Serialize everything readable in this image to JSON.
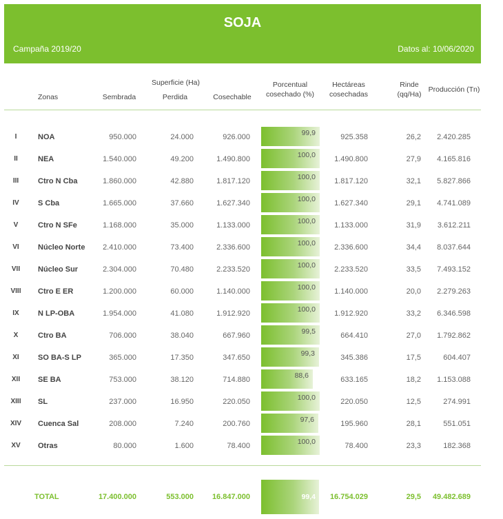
{
  "banner": {
    "title": "SOJA",
    "campaign": "Campaña 2019/20",
    "date": "Datos al: 10/06/2020"
  },
  "headers": {
    "zonas": "Zonas",
    "superficie": "Superficie (Ha)",
    "sembrada": "Sembrada",
    "perdida": "Perdida",
    "cosechable": "Cosechable",
    "porcentual_1": "Porcentual",
    "porcentual_2": "cosechado (%)",
    "hectareas_1": "Hectáreas",
    "hectareas_2": "cosechadas",
    "rinde_1": "Rinde",
    "rinde_2": "(qq/Ha)",
    "produccion": "Producción (Tn)"
  },
  "colors": {
    "accent": "#7cbf2e"
  },
  "rows": [
    {
      "roman": "I",
      "zona": "NOA",
      "sembrada": "950.000",
      "perdida": "24.000",
      "cosechable": "926.000",
      "pct": "99,9",
      "pct_value": 99.9,
      "hectareas": "925.358",
      "rinde": "26,2",
      "produccion": "2.420.285"
    },
    {
      "roman": "II",
      "zona": "NEA",
      "sembrada": "1.540.000",
      "perdida": "49.200",
      "cosechable": "1.490.800",
      "pct": "100,0",
      "pct_value": 100.0,
      "hectareas": "1.490.800",
      "rinde": "27,9",
      "produccion": "4.165.816"
    },
    {
      "roman": "III",
      "zona": "Ctro N Cba",
      "sembrada": "1.860.000",
      "perdida": "42.880",
      "cosechable": "1.817.120",
      "pct": "100,0",
      "pct_value": 100.0,
      "hectareas": "1.817.120",
      "rinde": "32,1",
      "produccion": "5.827.866"
    },
    {
      "roman": "IV",
      "zona": "S Cba",
      "sembrada": "1.665.000",
      "perdida": "37.660",
      "cosechable": "1.627.340",
      "pct": "100,0",
      "pct_value": 100.0,
      "hectareas": "1.627.340",
      "rinde": "29,1",
      "produccion": "4.741.089"
    },
    {
      "roman": "V",
      "zona": "Ctro N SFe",
      "sembrada": "1.168.000",
      "perdida": "35.000",
      "cosechable": "1.133.000",
      "pct": "100,0",
      "pct_value": 100.0,
      "hectareas": "1.133.000",
      "rinde": "31,9",
      "produccion": "3.612.211"
    },
    {
      "roman": "VI",
      "zona": "Núcleo Norte",
      "sembrada": "2.410.000",
      "perdida": "73.400",
      "cosechable": "2.336.600",
      "pct": "100,0",
      "pct_value": 100.0,
      "hectareas": "2.336.600",
      "rinde": "34,4",
      "produccion": "8.037.644"
    },
    {
      "roman": "VII",
      "zona": "Núcleo Sur",
      "sembrada": "2.304.000",
      "perdida": "70.480",
      "cosechable": "2.233.520",
      "pct": "100,0",
      "pct_value": 100.0,
      "hectareas": "2.233.520",
      "rinde": "33,5",
      "produccion": "7.493.152"
    },
    {
      "roman": "VIII",
      "zona": "Ctro E ER",
      "sembrada": "1.200.000",
      "perdida": "60.000",
      "cosechable": "1.140.000",
      "pct": "100,0",
      "pct_value": 100.0,
      "hectareas": "1.140.000",
      "rinde": "20,0",
      "produccion": "2.279.263"
    },
    {
      "roman": "IX",
      "zona": "N LP-OBA",
      "sembrada": "1.954.000",
      "perdida": "41.080",
      "cosechable": "1.912.920",
      "pct": "100,0",
      "pct_value": 100.0,
      "hectareas": "1.912.920",
      "rinde": "33,2",
      "produccion": "6.346.598"
    },
    {
      "roman": "X",
      "zona": "Ctro BA",
      "sembrada": "706.000",
      "perdida": "38.040",
      "cosechable": "667.960",
      "pct": "99,5",
      "pct_value": 99.5,
      "hectareas": "664.410",
      "rinde": "27,0",
      "produccion": "1.792.862"
    },
    {
      "roman": "XI",
      "zona": "SO BA-S LP",
      "sembrada": "365.000",
      "perdida": "17.350",
      "cosechable": "347.650",
      "pct": "99,3",
      "pct_value": 99.3,
      "hectareas": "345.386",
      "rinde": "17,5",
      "produccion": "604.407"
    },
    {
      "roman": "XII",
      "zona": "SE BA",
      "sembrada": "753.000",
      "perdida": "38.120",
      "cosechable": "714.880",
      "pct": "88,6",
      "pct_value": 88.6,
      "hectareas": "633.165",
      "rinde": "18,2",
      "produccion": "1.153.088"
    },
    {
      "roman": "XIII",
      "zona": "SL",
      "sembrada": "237.000",
      "perdida": "16.950",
      "cosechable": "220.050",
      "pct": "100,0",
      "pct_value": 100.0,
      "hectareas": "220.050",
      "rinde": "12,5",
      "produccion": "274.991"
    },
    {
      "roman": "XIV",
      "zona": "Cuenca Sal",
      "sembrada": "208.000",
      "perdida": "7.240",
      "cosechable": "200.760",
      "pct": "97,6",
      "pct_value": 97.6,
      "hectareas": "195.960",
      "rinde": "28,1",
      "produccion": "551.051"
    },
    {
      "roman": "XV",
      "zona": "Otras",
      "sembrada": "80.000",
      "perdida": "1.600",
      "cosechable": "78.400",
      "pct": "100,0",
      "pct_value": 100.0,
      "hectareas": "78.400",
      "rinde": "23,3",
      "produccion": "182.368"
    }
  ],
  "total": {
    "label": "TOTAL",
    "sembrada": "17.400.000",
    "perdida": "553.000",
    "cosechable": "16.847.000",
    "pct": "99,4",
    "pct_value": 99.4,
    "hectareas": "16.754.029",
    "rinde": "29,5",
    "produccion": "49.482.689"
  }
}
